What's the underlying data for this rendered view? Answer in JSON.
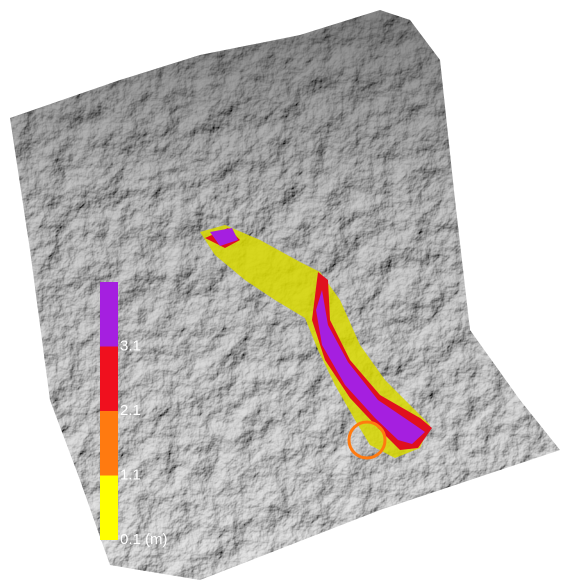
{
  "legend": {
    "items": [
      {
        "label": "3.1",
        "color": "#a51fe0"
      },
      {
        "label": "2.1",
        "color": "#f0101e"
      },
      {
        "label": "1.1",
        "color": "#ff7a10"
      },
      {
        "label": "0.1 (m)",
        "color": "#ffff00"
      }
    ]
  }
}
